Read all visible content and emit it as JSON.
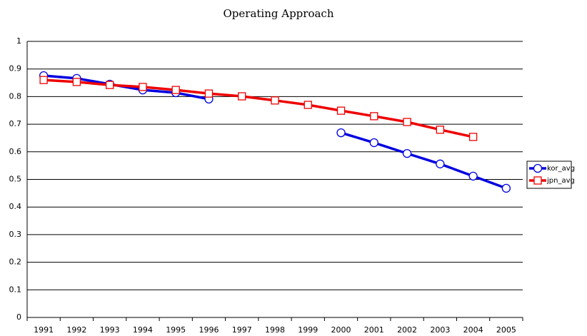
{
  "chart_data": {
    "type": "line",
    "title": "Operating Approach",
    "categories": [
      "1991",
      "1992",
      "1993",
      "1994",
      "1995",
      "1996",
      "1997",
      "1998",
      "1999",
      "2000",
      "2001",
      "2002",
      "2003",
      "2004",
      "2005"
    ],
    "series": [
      {
        "name": "kor_avg",
        "color": "#0000e0",
        "marker": "circle",
        "values": [
          0.876,
          0.866,
          0.845,
          0.824,
          0.814,
          0.791,
          null,
          null,
          null,
          0.669,
          0.633,
          0.594,
          0.556,
          0.512,
          0.468
        ]
      },
      {
        "name": "jpn_avg",
        "color": "#ee0000",
        "marker": "square",
        "values": [
          0.86,
          0.853,
          0.842,
          0.835,
          0.824,
          0.811,
          0.801,
          0.786,
          0.77,
          0.749,
          0.729,
          0.708,
          0.68,
          0.654,
          null
        ]
      }
    ],
    "ylim": [
      0,
      1
    ],
    "yticks": [
      0,
      0.1,
      0.2,
      0.3,
      0.4,
      0.5,
      0.6,
      0.7,
      0.8,
      0.9,
      1
    ],
    "grid": true,
    "legend": "right"
  }
}
